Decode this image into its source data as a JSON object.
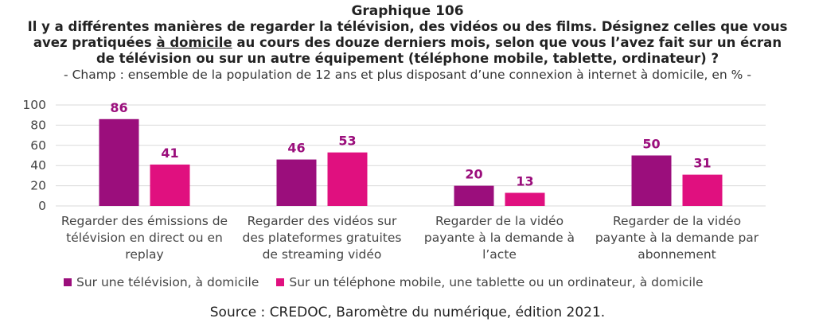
{
  "title": {
    "number": "Graphique 106",
    "question_before": "Il y a différentes manières de regarder la télévision, des vidéos ou des films. Désignez celles que vous avez pratiquées ",
    "question_underlined": "à domicile",
    "question_after": " au cours des douze derniers mois, selon que vous l’avez fait sur un écran de télévision ou sur un autre équipement (téléphone mobile, tablette, ordinateur) ?",
    "scope": "- Champ : ensemble de la population de 12 ans et plus disposant d’une connexion à internet à domicile, en % -"
  },
  "source": "Source : CREDOC, Baromètre du numérique, édition 2021.",
  "colors": {
    "tv": "#9B0E7C",
    "other": "#E0107F",
    "grid": "#d9d9d9",
    "label": "#9B0E7C"
  },
  "chart_data": {
    "type": "bar",
    "categories": [
      [
        "Regarder des émissions de",
        "télévision en direct ou en",
        "replay"
      ],
      [
        "Regarder des vidéos sur",
        "des plateformes gratuites",
        "de streaming vidéo"
      ],
      [
        "Regarder de la vidéo",
        "payante à la demande à",
        "l’acte"
      ],
      [
        "Regarder de la vidéo",
        "payante à la demande par",
        "abonnement"
      ]
    ],
    "series": [
      {
        "name": "Sur une télévision, à domicile",
        "values": [
          86,
          46,
          20,
          50
        ]
      },
      {
        "name": "Sur un téléphone mobile, une tablette ou un ordinateur, à domicile",
        "values": [
          41,
          53,
          13,
          31
        ]
      }
    ],
    "yticks": [
      "0",
      "20",
      "40",
      "60",
      "80",
      "100"
    ],
    "ylim": [
      0,
      100
    ],
    "grid": true,
    "legend_position": "bottom"
  }
}
